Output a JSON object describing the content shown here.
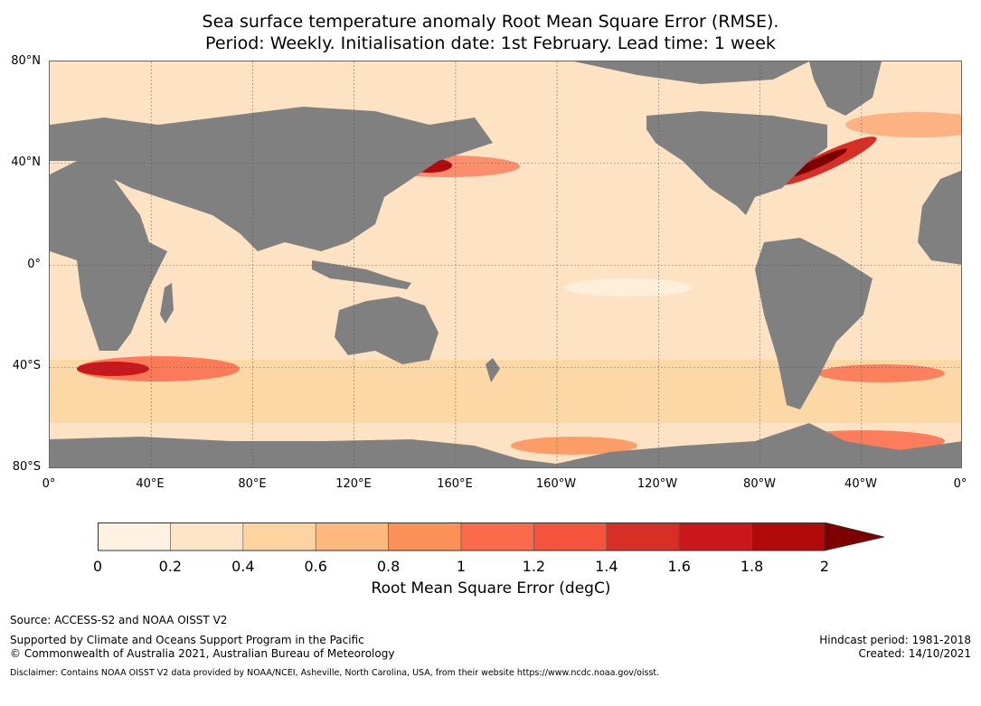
{
  "title": {
    "line1": "Sea surface temperature anomaly Root Mean Square Error (RMSE).",
    "line2": "Period: Weekly. Initialisation date: 1st February. Lead time: 1 week"
  },
  "map": {
    "lat_labels": [
      "80°N",
      "40°N",
      "0°",
      "40°S",
      "80°S"
    ],
    "lon_labels": [
      "0°",
      "40°E",
      "80°E",
      "120°E",
      "160°E",
      "160°W",
      "120°W",
      "80°W",
      "40°W",
      "0°"
    ],
    "land_color": "#808080",
    "grid_color": "#555555"
  },
  "colorbar": {
    "label": "Root Mean Square Error (degC)",
    "ticks": [
      "0",
      "0.2",
      "0.4",
      "0.6",
      "0.8",
      "1",
      "1.2",
      "1.4",
      "1.6",
      "1.8",
      "2"
    ],
    "colors": [
      "#fff1e0",
      "#fee5c8",
      "#fdd4a0",
      "#fdb97d",
      "#fc9158",
      "#fb6a4a",
      "#f5533c",
      "#d72f25",
      "#c9171c",
      "#b20a0a"
    ],
    "extend_color": "#7c0000"
  },
  "footer": {
    "source": "Source: ACCESS-S2 and NOAA OISST V2",
    "support": "Supported by Climate and Oceans Support Program in the Pacific",
    "copyright": "© Commonwealth of Australia 2021, Australian Bureau of Meteorology",
    "disclaimer": "Disclaimer: Contains NOAA OISST V2 data provided by NOAA/NCEI, Asheville, North Carolina, USA, from their website https://www.ncdc.noaa.gov/oisst.",
    "hindcast": "Hindcast period: 1981-2018",
    "created": "Created: 14/10/2021"
  }
}
